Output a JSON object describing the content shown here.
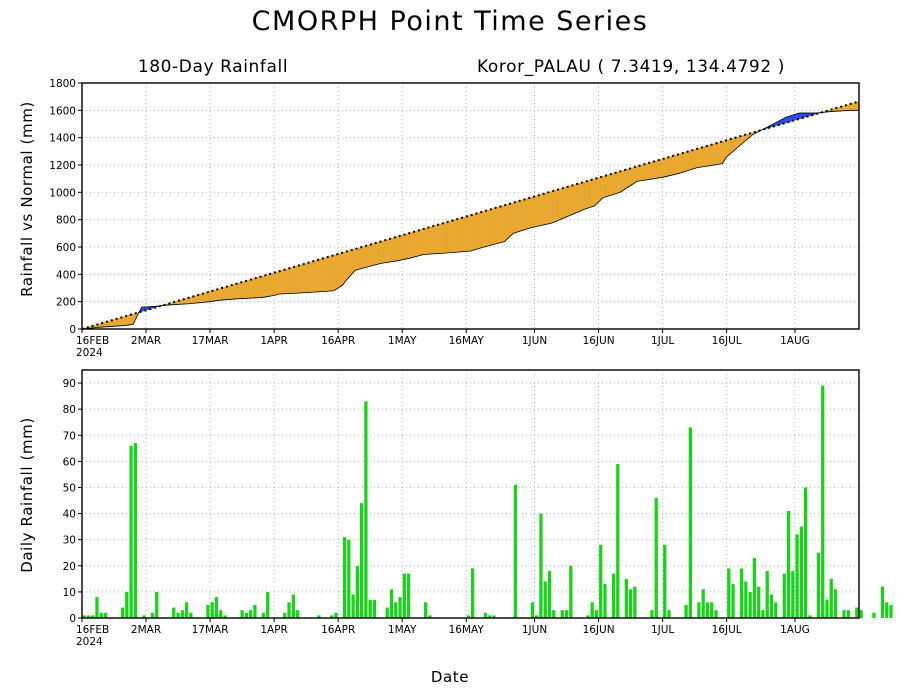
{
  "header": {
    "title": "CMORPH Point Time Series",
    "panel_label": "180-Day Rainfall",
    "location": "Koror_PALAU ( 7.3419, 134.4792 )",
    "xlabel": "Date"
  },
  "chart_data": [
    {
      "type": "area",
      "ylabel": "Rainfall vs Normal (mm)",
      "ylim": [
        0,
        1800
      ],
      "yticks": [
        0,
        200,
        400,
        600,
        800,
        1000,
        1200,
        1400,
        1600,
        1800
      ],
      "xlim": [
        0,
        182
      ],
      "xticks": [
        {
          "day": 0,
          "label": "16FEB",
          "sublabel": "2024"
        },
        {
          "day": 15,
          "label": "2MAR"
        },
        {
          "day": 30,
          "label": "17MAR"
        },
        {
          "day": 45,
          "label": "1APR"
        },
        {
          "day": 60,
          "label": "16APR"
        },
        {
          "day": 75,
          "label": "1MAY"
        },
        {
          "day": 90,
          "label": "16MAY"
        },
        {
          "day": 106,
          "label": "1JUN"
        },
        {
          "day": 121,
          "label": "16JUN"
        },
        {
          "day": 136,
          "label": "1JUL"
        },
        {
          "day": 151,
          "label": "16JUL"
        },
        {
          "day": 167,
          "label": "1AUG"
        }
      ],
      "grid": true,
      "colors": {
        "above_normal": "#2a4cf0",
        "below_normal": "#e8a830",
        "normal_line": "#000000"
      },
      "series": [
        {
          "role": "normal",
          "x": [
            0,
            182
          ],
          "y": [
            0,
            1665
          ]
        },
        {
          "role": "observed",
          "x": [
            0,
            5,
            10,
            12,
            13,
            14,
            17,
            20,
            25,
            30,
            32,
            36,
            42,
            45,
            46,
            52,
            59,
            61,
            62,
            64,
            70,
            74,
            77,
            80,
            85,
            89,
            91,
            93,
            99,
            101,
            105,
            110,
            112,
            118,
            120,
            122,
            126,
            129,
            130,
            136,
            140,
            144,
            150,
            151,
            154,
            157,
            165,
            167,
            168,
            172,
            175,
            180,
            182
          ],
          "y": [
            0,
            15,
            25,
            35,
            100,
            160,
            165,
            175,
            185,
            200,
            210,
            220,
            230,
            245,
            255,
            265,
            280,
            320,
            360,
            430,
            480,
            500,
            520,
            545,
            555,
            565,
            570,
            590,
            640,
            700,
            740,
            775,
            800,
            880,
            900,
            960,
            1000,
            1060,
            1080,
            1110,
            1140,
            1180,
            1210,
            1260,
            1340,
            1420,
            1550,
            1570,
            1580,
            1580,
            1590,
            1600,
            1600
          ]
        }
      ]
    },
    {
      "type": "bar",
      "ylabel": "Daily Rainfall (mm)",
      "ylim": [
        0,
        95
      ],
      "yticks": [
        0,
        10,
        20,
        30,
        40,
        50,
        60,
        70,
        80,
        90
      ],
      "xlim": [
        0,
        182
      ],
      "xticks": [
        {
          "day": 0,
          "label": "16FEB",
          "sublabel": "2024"
        },
        {
          "day": 15,
          "label": "2MAR"
        },
        {
          "day": 30,
          "label": "17MAR"
        },
        {
          "day": 45,
          "label": "1APR"
        },
        {
          "day": 60,
          "label": "16APR"
        },
        {
          "day": 75,
          "label": "1MAY"
        },
        {
          "day": 90,
          "label": "16MAY"
        },
        {
          "day": 106,
          "label": "1JUN"
        },
        {
          "day": 121,
          "label": "16JUN"
        },
        {
          "day": 136,
          "label": "1JUL"
        },
        {
          "day": 151,
          "label": "16JUL"
        },
        {
          "day": 167,
          "label": "1AUG"
        }
      ],
      "grid": true,
      "colors": {
        "bar": "#18d418"
      },
      "series": [
        {
          "values": [
            1,
            1,
            1,
            8,
            2,
            2,
            0,
            0,
            0,
            4,
            10,
            66,
            67,
            0,
            1,
            0,
            2,
            10,
            0,
            0,
            0,
            4,
            2,
            3,
            6,
            2,
            0,
            0,
            0,
            5,
            6,
            8,
            3,
            1,
            0,
            0,
            0,
            3,
            2,
            3,
            5,
            0,
            2,
            10,
            0,
            0,
            0,
            2,
            6,
            9,
            3,
            0,
            0,
            0,
            0,
            1,
            0,
            0,
            1,
            2,
            0,
            31,
            30,
            9,
            20,
            44,
            83,
            7,
            7,
            0,
            0,
            4,
            11,
            6,
            8,
            17,
            17,
            0,
            0,
            0,
            6,
            1,
            0,
            0,
            0,
            0,
            0,
            0,
            0,
            0,
            1,
            19,
            0,
            0,
            2,
            1,
            1,
            0,
            0,
            0,
            0,
            51,
            0,
            0,
            0,
            6,
            1,
            40,
            14,
            18,
            3,
            0,
            3,
            3,
            20,
            0,
            0,
            0,
            1,
            6,
            3,
            28,
            13,
            0,
            17,
            59,
            0,
            15,
            11,
            12,
            0,
            0,
            0,
            3,
            46,
            0,
            28,
            3,
            0,
            0,
            0,
            5,
            73,
            0,
            6,
            11,
            6,
            6,
            3,
            0,
            0,
            19,
            13,
            0,
            19,
            14,
            10,
            23,
            12,
            3,
            18,
            9,
            6,
            0,
            17,
            41,
            18,
            32,
            35,
            50,
            1,
            0,
            25,
            89,
            7,
            15,
            11,
            0,
            3,
            3,
            0,
            4,
            3,
            0,
            0,
            2,
            0,
            12,
            6,
            5
          ]
        }
      ]
    }
  ]
}
